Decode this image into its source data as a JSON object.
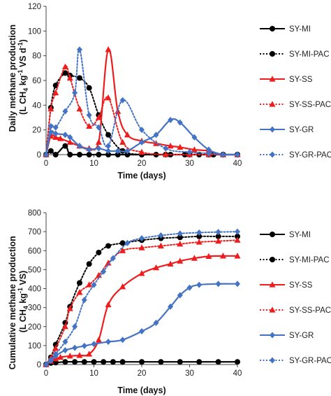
{
  "colors": {
    "black": "#000000",
    "red": "#ee1c1c",
    "blue": "#4472c4",
    "axis": "#444444"
  },
  "chart_data": [
    {
      "type": "line",
      "xlabel": "Time (days)",
      "ylabel": {
        "line1": "Daily methane production",
        "line2_pre": "(L CH",
        "line2_sub": "4",
        "line2_mid": " kg",
        "line2_sup": "-1",
        "line2_post": " VS d",
        "line2_sup2": "-1",
        "line2_end": ")"
      },
      "xlim": [
        0,
        40
      ],
      "ylim": [
        0,
        120
      ],
      "xticks": [
        "0",
        "10",
        "20",
        "30",
        "40"
      ],
      "yticks": [
        "0",
        "20",
        "40",
        "60",
        "80",
        "100",
        "120"
      ],
      "grid": false,
      "legend_placement": "right",
      "series": [
        {
          "name": "SY-MI",
          "color": "#000000",
          "dash": "solid",
          "marker": "circle",
          "x": [
            0,
            1,
            2,
            4,
            5,
            7,
            9,
            11,
            13,
            15,
            17,
            20,
            23,
            26,
            29,
            32,
            35,
            37,
            40
          ],
          "y": [
            0,
            3,
            0,
            7,
            0,
            0,
            0,
            0,
            0,
            0,
            0,
            0,
            0,
            0,
            0,
            0,
            0,
            0,
            0
          ]
        },
        {
          "name": "SY-MI-PAC",
          "color": "#000000",
          "dash": "dotted",
          "marker": "circle",
          "x": [
            0,
            1,
            2,
            4,
            5,
            7,
            9,
            11,
            13,
            16,
            20,
            25,
            30,
            34,
            37,
            40
          ],
          "y": [
            0,
            38,
            56,
            66,
            64,
            62,
            54,
            32,
            16,
            3,
            0,
            0,
            0,
            0,
            0,
            0
          ]
        },
        {
          "name": "SY-SS",
          "color": "#ee1c1c",
          "dash": "solid",
          "marker": "triangle",
          "x": [
            0,
            1,
            2,
            3,
            5,
            7,
            9,
            11,
            13,
            15,
            17,
            20,
            23,
            26,
            28,
            31,
            34,
            37,
            40
          ],
          "y": [
            0,
            15,
            14,
            13,
            10,
            7,
            5,
            10,
            85,
            35,
            16,
            11,
            9,
            7,
            6,
            4,
            3,
            0,
            0
          ]
        },
        {
          "name": "SY-SS-PAC",
          "color": "#ee1c1c",
          "dash": "dotted",
          "marker": "triangle",
          "x": [
            0,
            1,
            2,
            4,
            5,
            7,
            9,
            11,
            13,
            16,
            20,
            25,
            30,
            34,
            37,
            40
          ],
          "y": [
            0,
            37,
            50,
            71,
            62,
            37,
            23,
            30,
            46,
            10,
            2,
            0,
            0,
            0,
            0,
            0
          ]
        },
        {
          "name": "SY-GR",
          "color": "#4472c4",
          "dash": "solid",
          "marker": "diamond",
          "x": [
            0,
            1,
            2,
            4,
            5,
            7,
            9,
            11,
            13,
            15,
            17,
            20,
            23,
            26,
            28,
            31,
            34,
            37,
            40
          ],
          "y": [
            0,
            18,
            17,
            16,
            14,
            7,
            4,
            5,
            3,
            3,
            3,
            10,
            16,
            28,
            26,
            14,
            4,
            0,
            0
          ]
        },
        {
          "name": "SY-GR-PAC",
          "color": "#4472c4",
          "dash": "dotted",
          "marker": "diamond",
          "x": [
            0,
            1,
            2,
            4,
            6,
            7,
            9,
            11,
            13,
            16,
            20,
            25,
            30,
            34,
            37,
            40
          ],
          "y": [
            0,
            23,
            22,
            35,
            50,
            85,
            32,
            22,
            7,
            44,
            20,
            5,
            2,
            1,
            0,
            0
          ]
        }
      ]
    },
    {
      "type": "line",
      "xlabel": "Time (days)",
      "ylabel": {
        "line1": "Cumulative methane production",
        "line2_pre": "(L CH",
        "line2_sub": "4",
        "line2_mid": " kg",
        "line2_sup": "-1",
        "line2_post": " VS)",
        "line2_sup2": "",
        "line2_end": ""
      },
      "xlim": [
        0,
        40
      ],
      "ylim": [
        0,
        800
      ],
      "xticks": [
        "0",
        "10",
        "20",
        "30",
        "40"
      ],
      "yticks": [
        "0",
        "100",
        "200",
        "300",
        "400",
        "500",
        "600",
        "700",
        "800"
      ],
      "grid": false,
      "legend_placement": "right",
      "series": [
        {
          "name": "SY-MI",
          "color": "#000000",
          "dash": "solid",
          "marker": "circle",
          "x": [
            0,
            1,
            2,
            4,
            6,
            8,
            10,
            12,
            14,
            16,
            20,
            24,
            28,
            32,
            36,
            40
          ],
          "y": [
            0,
            8,
            10,
            14,
            14,
            14,
            14,
            14,
            14,
            14,
            14,
            14,
            14,
            14,
            14,
            14
          ]
        },
        {
          "name": "SY-MI-PAC",
          "color": "#000000",
          "dash": "dotted",
          "marker": "circle",
          "x": [
            0,
            1,
            2,
            4,
            5,
            7,
            9,
            11,
            13,
            16,
            20,
            24,
            28,
            32,
            36,
            40
          ],
          "y": [
            0,
            38,
            105,
            220,
            305,
            430,
            530,
            590,
            625,
            640,
            655,
            665,
            670,
            675,
            675,
            675
          ]
        },
        {
          "name": "SY-SS",
          "color": "#ee1c1c",
          "dash": "solid",
          "marker": "triangle",
          "x": [
            0,
            1,
            2,
            3,
            5,
            7,
            9,
            11,
            13,
            16,
            20,
            23,
            26,
            28,
            31,
            34,
            37,
            40
          ],
          "y": [
            0,
            18,
            30,
            38,
            45,
            48,
            55,
            130,
            315,
            410,
            480,
            510,
            530,
            545,
            560,
            570,
            572,
            572
          ]
        },
        {
          "name": "SY-SS-PAC",
          "color": "#ee1c1c",
          "dash": "dotted",
          "marker": "triangle",
          "x": [
            0,
            1,
            2,
            4,
            5,
            7,
            9,
            11,
            13,
            16,
            20,
            24,
            28,
            32,
            36,
            40
          ],
          "y": [
            0,
            35,
            85,
            200,
            295,
            380,
            420,
            470,
            535,
            600,
            615,
            625,
            635,
            645,
            650,
            655
          ]
        },
        {
          "name": "SY-GR",
          "color": "#4472c4",
          "dash": "solid",
          "marker": "diamond",
          "x": [
            0,
            1,
            2,
            4,
            6,
            8,
            10,
            13,
            16,
            20,
            23,
            26,
            28,
            30,
            32,
            36,
            40
          ],
          "y": [
            0,
            20,
            45,
            75,
            88,
            98,
            108,
            120,
            130,
            175,
            220,
            305,
            365,
            405,
            420,
            425,
            425
          ]
        },
        {
          "name": "SY-GR-PAC",
          "color": "#4472c4",
          "dash": "dotted",
          "marker": "diamond",
          "x": [
            0,
            1,
            2,
            4,
            6,
            8,
            10,
            12,
            14,
            17,
            20,
            24,
            28,
            32,
            36,
            40
          ],
          "y": [
            0,
            25,
            55,
            120,
            200,
            340,
            420,
            490,
            560,
            640,
            665,
            680,
            690,
            695,
            698,
            700
          ]
        }
      ]
    }
  ]
}
